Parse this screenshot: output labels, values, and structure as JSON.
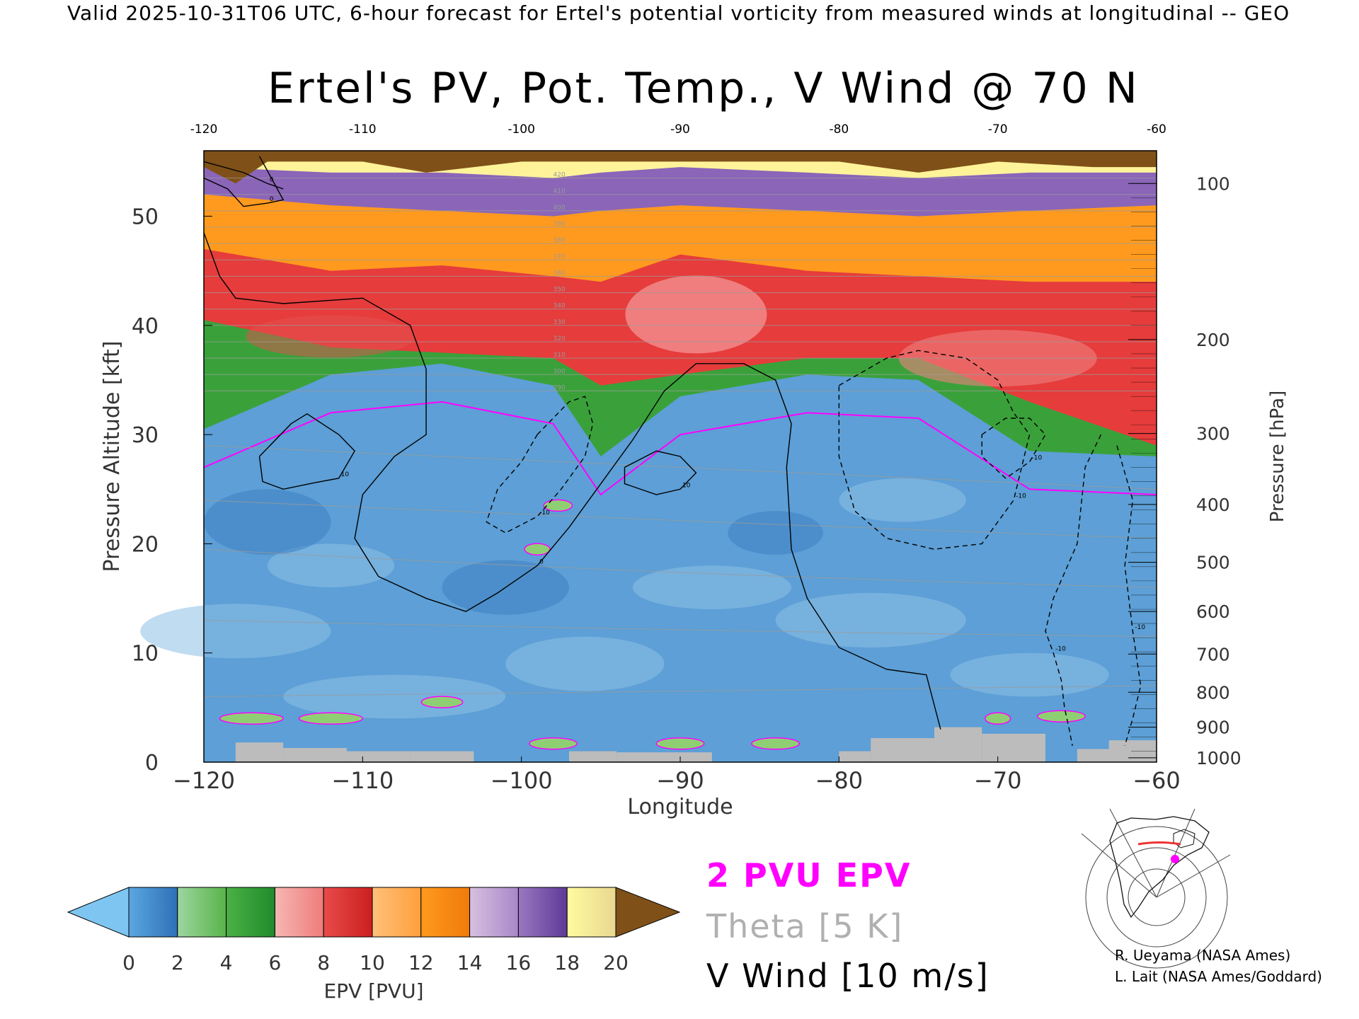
{
  "banner": "Valid 2025-10-31T06 UTC, 6-hour forecast for Ertel's potential vorticity from measured winds at longitudinal -- GEO",
  "chart_data": {
    "type": "heatmap",
    "title": "Ertel's PV, Pot. Temp., V Wind @ 70 N",
    "xlabel": "Longitude",
    "ylabel": "Pressure Altitude [kft]",
    "y2label": "Pressure [hPa]",
    "xlim": [
      -120,
      -60
    ],
    "ylim": [
      0,
      56
    ],
    "x_ticks": [
      -120,
      -110,
      -100,
      -90,
      -80,
      -70,
      -60
    ],
    "x_tick_labels": [
      "−120",
      "−110",
      "−100",
      "−90",
      "−80",
      "−70",
      "−60"
    ],
    "top_tick_labels": [
      "-120",
      "-110",
      "-100",
      "-90",
      "-80",
      "-70",
      "-60"
    ],
    "y_ticks": [
      0,
      10,
      20,
      30,
      40,
      50
    ],
    "pressure_ticks": [
      {
        "label": "100",
        "alt": 53.0
      },
      {
        "label": "200",
        "alt": 38.7
      },
      {
        "label": "300",
        "alt": 30.1
      },
      {
        "label": "400",
        "alt": 23.6
      },
      {
        "label": "500",
        "alt": 18.3
      },
      {
        "label": "600",
        "alt": 13.8
      },
      {
        "label": "700",
        "alt": 9.9
      },
      {
        "label": "800",
        "alt": 6.4
      },
      {
        "label": "900",
        "alt": 3.2
      },
      {
        "label": "1000",
        "alt": 0.4
      }
    ],
    "epv_band_base_kft": [
      {
        "lon": -120,
        "tropo": 27.0,
        "stratosphere_red": 40.5,
        "orange": 47.0,
        "purple": 52.0,
        "yellow": 54.5
      },
      {
        "lon": -112,
        "tropo": 32.0,
        "stratosphere_red": 38.0,
        "orange": 45.0,
        "purple": 51.0,
        "yellow": 54.0
      },
      {
        "lon": -105,
        "tropo": 33.0,
        "stratosphere_red": 37.5,
        "orange": 45.5,
        "purple": 50.5,
        "yellow": 54.0
      },
      {
        "lon": -98,
        "tropo": 31.0,
        "stratosphere_red": 37.0,
        "orange": 44.5,
        "purple": 50.0,
        "yellow": 53.5
      },
      {
        "lon": -95,
        "tropo": 24.5,
        "stratosphere_red": 34.5,
        "orange": 44.0,
        "purple": 50.5,
        "yellow": 54.0
      },
      {
        "lon": -90,
        "tropo": 30.0,
        "stratosphere_red": 35.5,
        "orange": 46.5,
        "purple": 51.0,
        "yellow": 54.5
      },
      {
        "lon": -82,
        "tropo": 32.0,
        "stratosphere_red": 37.0,
        "orange": 45.0,
        "purple": 50.5,
        "yellow": 54.0
      },
      {
        "lon": -75,
        "tropo": 31.5,
        "stratosphere_red": 37.0,
        "orange": 44.5,
        "purple": 50.0,
        "yellow": 53.5
      },
      {
        "lon": -68,
        "tropo": 25.0,
        "stratosphere_red": 33.0,
        "orange": 44.0,
        "purple": 50.5,
        "yellow": 54.0
      },
      {
        "lon": -60,
        "tropo": 24.5,
        "stratosphere_red": 29.0,
        "orange": 44.0,
        "purple": 51.0,
        "yellow": 54.0
      }
    ],
    "theta_labels": [
      "420",
      "410",
      "400",
      "390",
      "380",
      "370",
      "360",
      "350",
      "340",
      "330",
      "320",
      "310",
      "300",
      "290"
    ],
    "vwind_contours": [
      {
        "level": "0",
        "style": "solid",
        "points": [
          [
            -120,
            48.5
          ],
          [
            -119,
            44.5
          ],
          [
            -118,
            42.5
          ],
          [
            -115,
            42
          ],
          [
            -110,
            42.5
          ],
          [
            -107,
            40
          ],
          [
            -106,
            36
          ],
          [
            -106,
            30
          ],
          [
            -108,
            28
          ],
          [
            -110,
            24.5
          ],
          [
            -110.5,
            20.5
          ],
          [
            -109,
            17
          ],
          [
            -106,
            15
          ],
          [
            -103.5,
            13.8
          ],
          [
            -101.5,
            15.5
          ],
          [
            -99,
            18
          ],
          [
            -97,
            21.5
          ],
          [
            -95,
            25.5
          ],
          [
            -93,
            29.5
          ],
          [
            -91,
            34
          ],
          [
            -89,
            36.5
          ],
          [
            -86,
            36.5
          ],
          [
            -84,
            35
          ],
          [
            -83,
            31
          ],
          [
            -83.3,
            27
          ],
          [
            -83,
            19.5
          ],
          [
            -82,
            15
          ],
          [
            -80,
            10.5
          ],
          [
            -77,
            8.5
          ],
          [
            -74.5,
            8
          ],
          [
            -73.6,
            3
          ]
        ]
      },
      {
        "level": "0",
        "style": "solid",
        "points": [
          [
            -120,
            53.5
          ],
          [
            -118.5,
            52.5
          ],
          [
            -117.5,
            50.9
          ],
          [
            -116,
            51.2
          ],
          [
            -115,
            51.5
          ],
          [
            -116.5,
            55.5
          ]
        ]
      },
      {
        "level": "0",
        "style": "solid",
        "points": [
          [
            -120,
            55
          ],
          [
            -117.5,
            54
          ],
          [
            -116,
            53
          ],
          [
            -115,
            52.5
          ]
        ]
      },
      {
        "level": "10",
        "style": "solid",
        "points": [
          [
            -116.5,
            28
          ],
          [
            -114.5,
            31
          ],
          [
            -113.5,
            31.9
          ],
          [
            -111.5,
            30
          ],
          [
            -110.5,
            28.5
          ],
          [
            -111.5,
            26
          ],
          [
            -113,
            25.6
          ],
          [
            -115,
            25
          ],
          [
            -116.3,
            25.7
          ],
          [
            -116.5,
            28
          ]
        ]
      },
      {
        "level": "10",
        "style": "solid",
        "points": [
          [
            -93.5,
            27
          ],
          [
            -91.5,
            28.5
          ],
          [
            -90,
            28
          ],
          [
            -89,
            26.5
          ],
          [
            -90,
            25
          ],
          [
            -91.5,
            24.5
          ],
          [
            -93.5,
            25.5
          ],
          [
            -93.5,
            27
          ]
        ]
      },
      {
        "level": "-10",
        "style": "dashed",
        "points": [
          [
            -99,
            30
          ],
          [
            -97,
            33
          ],
          [
            -96,
            33.5
          ],
          [
            -95.5,
            31
          ],
          [
            -96,
            28
          ],
          [
            -97.5,
            25
          ],
          [
            -99,
            22.5
          ],
          [
            -101,
            21
          ],
          [
            -102.2,
            22
          ],
          [
            -101.5,
            25
          ],
          [
            -100,
            27.5
          ],
          [
            -99,
            30
          ]
        ]
      },
      {
        "level": "-10",
        "style": "dashed",
        "points": [
          [
            -80,
            34.5
          ],
          [
            -77,
            37
          ],
          [
            -75,
            37.7
          ],
          [
            -72,
            37
          ],
          [
            -70,
            35
          ],
          [
            -69,
            32
          ],
          [
            -68,
            30
          ],
          [
            -69,
            24
          ],
          [
            -71,
            20
          ],
          [
            -74,
            19.5
          ],
          [
            -77,
            20.5
          ],
          [
            -79,
            23
          ],
          [
            -80,
            28
          ],
          [
            -80,
            34.5
          ]
        ]
      },
      {
        "level": "-10",
        "style": "dashed",
        "points": [
          [
            -71,
            30
          ],
          [
            -69.5,
            31.5
          ],
          [
            -68,
            31.5
          ],
          [
            -67,
            30
          ],
          [
            -68,
            27.5
          ],
          [
            -69.5,
            26
          ],
          [
            -71,
            28
          ],
          [
            -71,
            30
          ]
        ]
      },
      {
        "level": "-10",
        "style": "dashed",
        "points": [
          [
            -63.5,
            30
          ],
          [
            -64.5,
            27
          ],
          [
            -65,
            20
          ],
          [
            -66.5,
            15
          ],
          [
            -67,
            12
          ],
          [
            -66.5,
            10
          ],
          [
            -66,
            7.5
          ],
          [
            -65.8,
            5
          ],
          [
            -65.5,
            3
          ],
          [
            -65.3,
            1.5
          ]
        ]
      },
      {
        "level": "-10",
        "style": "dashed",
        "points": [
          [
            -62.5,
            29
          ],
          [
            -61.5,
            24
          ],
          [
            -62,
            18
          ],
          [
            -61.5,
            12
          ],
          [
            -61,
            7
          ],
          [
            -61.5,
            4
          ],
          [
            -62,
            1.5
          ]
        ]
      }
    ],
    "colorbar": {
      "label": "EPV [PVU]",
      "ticks": [
        "0",
        "2",
        "4",
        "6",
        "8",
        "10",
        "12",
        "14",
        "16",
        "18",
        "20"
      ],
      "segments": [
        [
          "#5aa7e0",
          "#2f70b8"
        ],
        [
          "#9ed5a0",
          "#58b44a"
        ],
        [
          "#4db046",
          "#1f8c2a"
        ],
        [
          "#f6b7b3",
          "#ef7b7b"
        ],
        [
          "#e84b4b",
          "#cc1f1f"
        ],
        [
          "#ffc07a",
          "#ff9f3c"
        ],
        [
          "#ff9a1e",
          "#f07a0a"
        ],
        [
          "#d7c0e0",
          "#a887c8"
        ],
        [
          "#9a78c0",
          "#5f3a98"
        ],
        [
          "#fffaa0",
          "#ead890"
        ],
        [
          "#b89055",
          "#85560f"
        ]
      ],
      "under_color": "#7ec6f1",
      "over_color": "#7f5118"
    },
    "legend": {
      "epv": "2 PVU EPV",
      "theta": "Theta [5 K]",
      "vwind": "V Wind [10 m/s]"
    }
  },
  "credits": [
    "R. Ueyama (NASA Ames)",
    "L. Lait (NASA Ames/Goddard)"
  ]
}
